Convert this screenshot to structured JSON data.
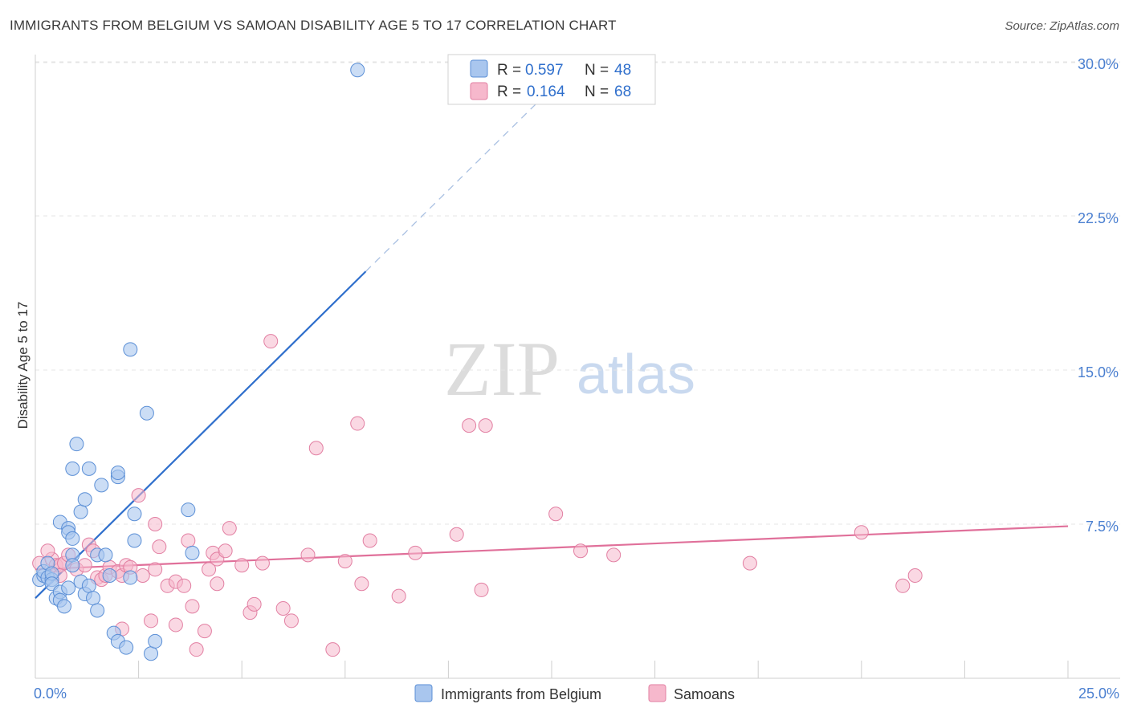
{
  "header": {
    "title": "IMMIGRANTS FROM BELGIUM VS SAMOAN DISABILITY AGE 5 TO 17 CORRELATION CHART",
    "source": "Source: ZipAtlas.com"
  },
  "watermark": {
    "zip": "ZIP",
    "atlas": "atlas"
  },
  "legend": {
    "items": [
      {
        "r_label": "R =",
        "r_value": "0.597",
        "n_label": "N =",
        "n_value": "48"
      },
      {
        "r_label": "R =",
        "r_value": "0.164",
        "n_label": "N =",
        "n_value": "68"
      }
    ]
  },
  "bottom_legend": {
    "items": [
      {
        "label": "Immigrants from Belgium"
      },
      {
        "label": "Samoans"
      }
    ]
  },
  "colors": {
    "blue_fill": "#a9c6ee",
    "blue_stroke": "#5b8fd6",
    "blue_line": "#2f6fcc",
    "pink_fill": "#f6b8cc",
    "pink_stroke": "#e27fa2",
    "pink_line": "#e0709a",
    "grid": "#e4e4e4",
    "axis_text": "#4a7fd0"
  },
  "chart_data": {
    "type": "scatter",
    "title": "IMMIGRANTS FROM BELGIUM VS SAMOAN DISABILITY AGE 5 TO 17 CORRELATION CHART",
    "xlabel": "",
    "ylabel": "Disability Age 5 to 17",
    "xlim": [
      0,
      25
    ],
    "ylim": [
      0,
      31
    ],
    "x_tick_labels": [
      "0.0%",
      "25.0%"
    ],
    "y_ticks": [
      7.5,
      15.0,
      22.5,
      30.0
    ],
    "y_tick_labels": [
      "7.5%",
      "15.0%",
      "22.5%",
      "30.0%"
    ],
    "series": [
      {
        "name": "Immigrants from Belgium",
        "color": "blue",
        "R": 0.597,
        "N": 48,
        "trend": {
          "x0": 0.0,
          "y0": 3.9,
          "x1": 8.0,
          "y1": 19.8,
          "dash_x_end": 12.5,
          "dash_y_end": 28.7
        },
        "points": [
          [
            0.1,
            4.8
          ],
          [
            0.2,
            5.0
          ],
          [
            0.2,
            5.2
          ],
          [
            0.3,
            4.9
          ],
          [
            0.3,
            5.6
          ],
          [
            0.4,
            4.8
          ],
          [
            0.4,
            5.1
          ],
          [
            0.5,
            3.9
          ],
          [
            0.4,
            4.6
          ],
          [
            0.6,
            4.2
          ],
          [
            0.6,
            3.8
          ],
          [
            0.7,
            3.5
          ],
          [
            0.8,
            4.4
          ],
          [
            0.6,
            7.6
          ],
          [
            0.8,
            7.3
          ],
          [
            0.8,
            7.1
          ],
          [
            0.9,
            6.8
          ],
          [
            0.9,
            6.0
          ],
          [
            1.0,
            11.4
          ],
          [
            0.9,
            10.2
          ],
          [
            0.9,
            5.5
          ],
          [
            1.1,
            8.1
          ],
          [
            1.2,
            8.7
          ],
          [
            1.1,
            4.7
          ],
          [
            1.2,
            4.1
          ],
          [
            1.3,
            4.5
          ],
          [
            1.5,
            6.0
          ],
          [
            1.4,
            3.9
          ],
          [
            1.5,
            3.3
          ],
          [
            1.3,
            10.2
          ],
          [
            1.6,
            9.4
          ],
          [
            1.7,
            6.0
          ],
          [
            1.8,
            5.0
          ],
          [
            1.9,
            2.2
          ],
          [
            2.0,
            1.8
          ],
          [
            2.0,
            9.8
          ],
          [
            2.3,
            4.9
          ],
          [
            2.0,
            10.0
          ],
          [
            2.2,
            1.5
          ],
          [
            2.3,
            16.0
          ],
          [
            2.4,
            6.7
          ],
          [
            2.4,
            8.0
          ],
          [
            2.7,
            12.9
          ],
          [
            2.8,
            1.2
          ],
          [
            2.9,
            1.8
          ],
          [
            3.7,
            8.2
          ],
          [
            3.8,
            6.1
          ],
          [
            7.8,
            29.6
          ]
        ]
      },
      {
        "name": "Samoans",
        "color": "pink",
        "R": 0.164,
        "N": 68,
        "trend": {
          "x0": 0.0,
          "y0": 5.3,
          "x1": 25.0,
          "y1": 7.4
        },
        "points": [
          [
            0.1,
            5.6
          ],
          [
            0.4,
            5.8
          ],
          [
            0.5,
            5.5
          ],
          [
            0.6,
            5.5
          ],
          [
            0.7,
            5.6
          ],
          [
            0.8,
            6.0
          ],
          [
            1.0,
            5.3
          ],
          [
            1.2,
            5.5
          ],
          [
            1.3,
            6.5
          ],
          [
            1.4,
            6.2
          ],
          [
            1.5,
            4.9
          ],
          [
            1.6,
            4.8
          ],
          [
            1.7,
            5.0
          ],
          [
            1.8,
            5.4
          ],
          [
            2.0,
            5.2
          ],
          [
            2.1,
            5.0
          ],
          [
            2.1,
            2.4
          ],
          [
            2.2,
            5.5
          ],
          [
            2.3,
            5.4
          ],
          [
            2.5,
            8.9
          ],
          [
            2.6,
            5.0
          ],
          [
            2.8,
            2.8
          ],
          [
            2.9,
            5.3
          ],
          [
            2.9,
            7.5
          ],
          [
            3.0,
            6.4
          ],
          [
            3.2,
            4.5
          ],
          [
            3.4,
            4.7
          ],
          [
            3.4,
            2.6
          ],
          [
            3.6,
            4.5
          ],
          [
            3.7,
            6.7
          ],
          [
            3.8,
            3.5
          ],
          [
            3.9,
            1.4
          ],
          [
            4.1,
            2.3
          ],
          [
            4.2,
            5.3
          ],
          [
            4.3,
            6.1
          ],
          [
            4.4,
            4.6
          ],
          [
            4.4,
            5.8
          ],
          [
            4.6,
            6.2
          ],
          [
            4.7,
            7.3
          ],
          [
            5.0,
            5.5
          ],
          [
            5.2,
            3.2
          ],
          [
            5.3,
            3.6
          ],
          [
            5.5,
            5.6
          ],
          [
            5.7,
            16.4
          ],
          [
            6.0,
            3.4
          ],
          [
            6.2,
            2.8
          ],
          [
            6.6,
            6.0
          ],
          [
            6.8,
            11.2
          ],
          [
            7.2,
            1.4
          ],
          [
            7.5,
            5.7
          ],
          [
            7.8,
            12.4
          ],
          [
            7.9,
            4.6
          ],
          [
            8.1,
            6.7
          ],
          [
            8.8,
            4.0
          ],
          [
            9.2,
            6.1
          ],
          [
            10.2,
            7.0
          ],
          [
            10.5,
            12.3
          ],
          [
            10.9,
            12.3
          ],
          [
            10.8,
            4.3
          ],
          [
            12.6,
            8.0
          ],
          [
            13.2,
            6.2
          ],
          [
            14.0,
            6.0
          ],
          [
            17.3,
            5.6
          ],
          [
            20.0,
            7.1
          ],
          [
            21.0,
            4.5
          ],
          [
            21.3,
            5.0
          ],
          [
            0.3,
            6.2
          ],
          [
            0.6,
            5.0
          ]
        ]
      }
    ]
  }
}
